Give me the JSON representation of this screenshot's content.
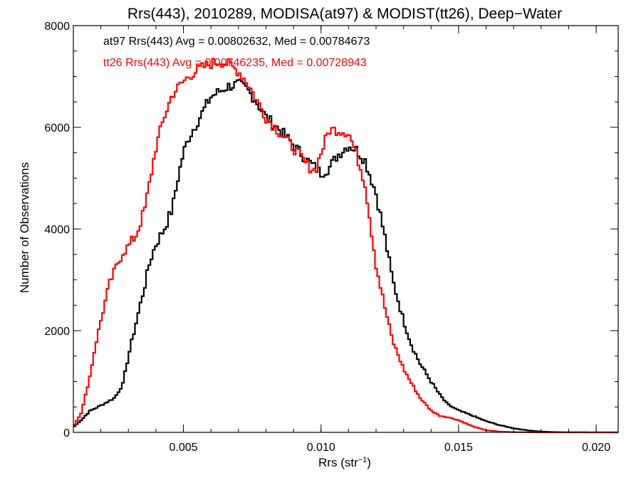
{
  "chart_data": {
    "type": "line",
    "title": "Rrs(443), 2010289, MODISA(at97) & MODIST(tt26), Deep−Water",
    "xlabel_main": "Rrs (str",
    "xlabel_sup": "−1",
    "xlabel_close": ")",
    "ylabel": "Number of Observations",
    "xlim": [
      0.001,
      0.0208
    ],
    "ylim": [
      0,
      8000
    ],
    "x_ticks": [
      {
        "value": 0.005,
        "label": "0.005"
      },
      {
        "value": 0.01,
        "label": "0.010"
      },
      {
        "value": 0.015,
        "label": "0.015"
      },
      {
        "value": 0.02,
        "label": "0.020"
      }
    ],
    "y_ticks": [
      {
        "value": 0,
        "label": "0"
      },
      {
        "value": 2000,
        "label": "2000"
      },
      {
        "value": 4000,
        "label": "4000"
      },
      {
        "value": 6000,
        "label": "6000"
      },
      {
        "value": 8000,
        "label": "8000"
      }
    ],
    "grid": false,
    "legend_position": "top-left",
    "series": [
      {
        "name": "at97",
        "color": "#000000",
        "annotation": "at97 Rrs(443) Avg = 0.00802632, Med = 0.00784673",
        "points": [
          [
            0.001,
            100
          ],
          [
            0.0013,
            250
          ],
          [
            0.0016,
            420
          ],
          [
            0.002,
            530
          ],
          [
            0.0025,
            680
          ],
          [
            0.0028,
            950
          ],
          [
            0.003,
            1500
          ],
          [
            0.0033,
            2200
          ],
          [
            0.0036,
            2900
          ],
          [
            0.0038,
            3400
          ],
          [
            0.004,
            3700
          ],
          [
            0.0043,
            4000
          ],
          [
            0.0046,
            4400
          ],
          [
            0.0048,
            5000
          ],
          [
            0.005,
            5500
          ],
          [
            0.0052,
            5800
          ],
          [
            0.0055,
            6100
          ],
          [
            0.0058,
            6400
          ],
          [
            0.006,
            6600
          ],
          [
            0.0063,
            6700
          ],
          [
            0.0066,
            6800
          ],
          [
            0.007,
            6850
          ],
          [
            0.0073,
            6750
          ],
          [
            0.0076,
            6550
          ],
          [
            0.008,
            6200
          ],
          [
            0.0085,
            5950
          ],
          [
            0.009,
            5650
          ],
          [
            0.0095,
            5350
          ],
          [
            0.01,
            5100
          ],
          [
            0.0103,
            5200
          ],
          [
            0.0106,
            5450
          ],
          [
            0.011,
            5650
          ],
          [
            0.0113,
            5550
          ],
          [
            0.0116,
            5350
          ],
          [
            0.012,
            4700
          ],
          [
            0.0123,
            3900
          ],
          [
            0.0126,
            3000
          ],
          [
            0.013,
            2200
          ],
          [
            0.0133,
            1700
          ],
          [
            0.0136,
            1350
          ],
          [
            0.014,
            1000
          ],
          [
            0.0143,
            750
          ],
          [
            0.0146,
            550
          ],
          [
            0.015,
            430
          ],
          [
            0.0155,
            330
          ],
          [
            0.016,
            220
          ],
          [
            0.0165,
            140
          ],
          [
            0.017,
            80
          ],
          [
            0.0175,
            40
          ],
          [
            0.018,
            15
          ],
          [
            0.0185,
            6
          ],
          [
            0.019,
            2
          ],
          [
            0.02,
            0
          ],
          [
            0.0208,
            0
          ]
        ]
      },
      {
        "name": "tt26",
        "color": "#ff0000",
        "annotation": "tt26 Rrs(443) Avg = 0.00746235, Med = 0.00728943",
        "points": [
          [
            0.001,
            120
          ],
          [
            0.0013,
            400
          ],
          [
            0.0016,
            1100
          ],
          [
            0.0018,
            1700
          ],
          [
            0.002,
            2200
          ],
          [
            0.0023,
            2900
          ],
          [
            0.0026,
            3300
          ],
          [
            0.0028,
            3550
          ],
          [
            0.003,
            3650
          ],
          [
            0.0033,
            3900
          ],
          [
            0.0036,
            4400
          ],
          [
            0.0038,
            5000
          ],
          [
            0.004,
            5600
          ],
          [
            0.0043,
            6200
          ],
          [
            0.0046,
            6650
          ],
          [
            0.005,
            6900
          ],
          [
            0.0053,
            7050
          ],
          [
            0.0056,
            7150
          ],
          [
            0.006,
            7250
          ],
          [
            0.0063,
            7300
          ],
          [
            0.0066,
            7250
          ],
          [
            0.007,
            7100
          ],
          [
            0.0073,
            6900
          ],
          [
            0.0076,
            6600
          ],
          [
            0.008,
            6200
          ],
          [
            0.0085,
            5900
          ],
          [
            0.009,
            5600
          ],
          [
            0.0095,
            5250
          ],
          [
            0.0098,
            5150
          ],
          [
            0.01,
            5500
          ],
          [
            0.0103,
            5950
          ],
          [
            0.0106,
            5950
          ],
          [
            0.011,
            5900
          ],
          [
            0.0113,
            5450
          ],
          [
            0.0116,
            4900
          ],
          [
            0.0118,
            4100
          ],
          [
            0.012,
            3300
          ],
          [
            0.0123,
            2500
          ],
          [
            0.0126,
            1800
          ],
          [
            0.013,
            1250
          ],
          [
            0.0133,
            950
          ],
          [
            0.0136,
            680
          ],
          [
            0.014,
            430
          ],
          [
            0.0143,
            330
          ],
          [
            0.0146,
            300
          ],
          [
            0.015,
            240
          ],
          [
            0.0155,
            120
          ],
          [
            0.016,
            40
          ],
          [
            0.0165,
            15
          ],
          [
            0.017,
            5
          ],
          [
            0.018,
            0
          ],
          [
            0.0208,
            0
          ]
        ]
      }
    ]
  }
}
